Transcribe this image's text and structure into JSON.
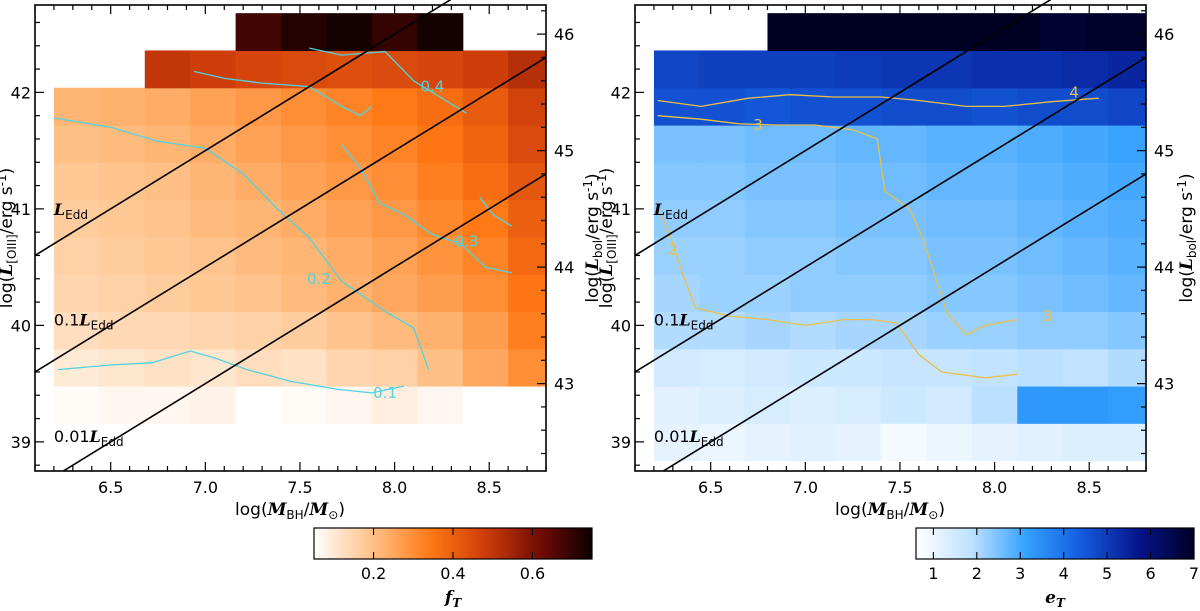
{
  "chart_data": [
    {
      "type": "heatmap",
      "xlabel": "log(M_BH/M_⊙)",
      "ylabel": "log(L_[OIII]/erg s^-1)",
      "ylabel_right": "log(L_bol/erg s^-1)",
      "xlim": [
        6.1,
        8.8
      ],
      "ylim": [
        38.75,
        42.75
      ],
      "x_ticks": [
        "6.5",
        "7.0",
        "7.5",
        "8.0",
        "8.5"
      ],
      "y_ticks": [
        "39",
        "40",
        "41",
        "42"
      ],
      "y_ticks_right": [
        "43",
        "44",
        "45",
        "46"
      ],
      "right_axis_offset": 3.5,
      "colormap": "orange",
      "colorbar": {
        "label": "f_T",
        "range": [
          0.05,
          0.75
        ],
        "ticks": [
          "0.2",
          "0.4",
          "0.6"
        ],
        "tick_values": [
          0.2,
          0.4,
          0.6
        ]
      },
      "eddington_lines": [
        {
          "label": "L_Edd",
          "label_prefix": "",
          "offset": 0,
          "label_xy": [
            6.2,
            41.0
          ]
        },
        {
          "label": "0.1L_Edd",
          "label_prefix": "0.1",
          "offset": -1,
          "label_xy": [
            6.2,
            40.05
          ]
        },
        {
          "label": "0.01L_Edd",
          "label_prefix": "0.01",
          "offset": -2,
          "label_xy": [
            6.2,
            39.05
          ]
        }
      ],
      "edd_line_slope": 1,
      "edd_line_intercept": 34.5,
      "x_bin_width": 0.24,
      "y_bin_height": 0.32,
      "rows": [
        {
          "y": 39.0,
          "x0": 6.2,
          "values": [
            0.03,
            0.03,
            0.04,
            0.04,
            0.04,
            0.03,
            0.05
          ]
        },
        {
          "y": 39.32,
          "x0": 6.2,
          "values": [
            0.06,
            0.07,
            0.07,
            0.08,
            0.05,
            0.06,
            0.07,
            0.09,
            0.07,
            0.05,
            0.04
          ]
        },
        {
          "y": 39.64,
          "x0": 6.2,
          "values": [
            0.1,
            0.11,
            0.12,
            0.11,
            0.13,
            0.12,
            0.15,
            0.16,
            0.2,
            0.25,
            0.3
          ]
        },
        {
          "y": 39.96,
          "x0": 6.2,
          "values": [
            0.13,
            0.14,
            0.14,
            0.15,
            0.16,
            0.17,
            0.19,
            0.21,
            0.23,
            0.27,
            0.33
          ]
        },
        {
          "y": 40.28,
          "x0": 6.2,
          "values": [
            0.15,
            0.16,
            0.17,
            0.18,
            0.19,
            0.21,
            0.23,
            0.25,
            0.27,
            0.3,
            0.35,
            0.3
          ]
        },
        {
          "y": 40.6,
          "x0": 6.2,
          "values": [
            0.16,
            0.17,
            0.18,
            0.19,
            0.21,
            0.22,
            0.24,
            0.26,
            0.29,
            0.32,
            0.38,
            0.4
          ]
        },
        {
          "y": 40.92,
          "x0": 6.2,
          "values": [
            0.17,
            0.18,
            0.19,
            0.21,
            0.22,
            0.24,
            0.26,
            0.28,
            0.31,
            0.34,
            0.4,
            0.42
          ]
        },
        {
          "y": 41.24,
          "x0": 6.2,
          "values": [
            0.18,
            0.19,
            0.2,
            0.22,
            0.24,
            0.26,
            0.28,
            0.3,
            0.33,
            0.37,
            0.42,
            0.47
          ]
        },
        {
          "y": 41.56,
          "x0": 6.2,
          "values": [
            0.2,
            0.21,
            0.22,
            0.24,
            0.26,
            0.28,
            0.3,
            0.32,
            0.35,
            0.39,
            0.45,
            0.52
          ]
        },
        {
          "y": 41.88,
          "x0": 6.2,
          "values": [
            0.22,
            0.23,
            0.24,
            0.26,
            0.28,
            0.3,
            0.32,
            0.34,
            0.37,
            0.41,
            0.47,
            0.6
          ]
        },
        {
          "y": 42.2,
          "x0": 6.68,
          "values": [
            0.5,
            0.48,
            0.46,
            0.45,
            0.44,
            0.45,
            0.46,
            0.48,
            0.52,
            0.55
          ]
        },
        {
          "y": 42.52,
          "x0": 7.16,
          "values": [
            0.68,
            0.72,
            0.74,
            0.7,
            0.74
          ]
        }
      ],
      "contours": [
        {
          "label": "0.1",
          "label_xy": [
            7.95,
            39.42
          ],
          "points": [
            [
              6.22,
              39.62
            ],
            [
              6.5,
              39.66
            ],
            [
              6.72,
              39.68
            ],
            [
              6.92,
              39.78
            ],
            [
              7.05,
              39.72
            ],
            [
              7.22,
              39.62
            ],
            [
              7.45,
              39.52
            ],
            [
              7.7,
              39.45
            ],
            [
              7.88,
              39.42
            ],
            [
              8.05,
              39.48
            ]
          ]
        },
        {
          "label": "0.2",
          "label_xy": [
            7.6,
            40.4
          ],
          "points": [
            [
              6.2,
              41.78
            ],
            [
              6.5,
              41.7
            ],
            [
              6.75,
              41.58
            ],
            [
              7.0,
              41.52
            ],
            [
              7.2,
              41.3
            ],
            [
              7.38,
              41.0
            ],
            [
              7.55,
              40.75
            ],
            [
              7.72,
              40.38
            ],
            [
              7.95,
              40.12
            ],
            [
              8.1,
              39.98
            ],
            [
              8.18,
              39.62
            ]
          ]
        },
        {
          "label": "0.3",
          "label_xy": [
            8.38,
            40.72
          ],
          "points": [
            [
              7.72,
              41.55
            ],
            [
              7.82,
              41.35
            ],
            [
              7.92,
              41.05
            ],
            [
              8.05,
              40.95
            ],
            [
              8.2,
              40.78
            ],
            [
              8.35,
              40.7
            ],
            [
              8.48,
              40.5
            ],
            [
              8.62,
              40.45
            ]
          ]
        },
        {
          "label": "0.4",
          "label_xy": [
            8.2,
            42.05
          ],
          "points": [
            [
              6.94,
              42.18
            ],
            [
              7.1,
              42.12
            ],
            [
              7.3,
              42.08
            ],
            [
              7.55,
              42.05
            ],
            [
              7.72,
              41.88
            ],
            [
              7.82,
              41.8
            ],
            [
              7.88,
              41.88
            ]
          ]
        },
        {
          "label": "",
          "label_xy": [
            0,
            0
          ],
          "points": [
            [
              7.55,
              42.38
            ],
            [
              7.72,
              42.32
            ],
            [
              7.95,
              42.35
            ],
            [
              8.1,
              42.1
            ],
            [
              8.25,
              41.95
            ],
            [
              8.38,
              41.82
            ]
          ]
        },
        {
          "label": "",
          "label_xy": [
            0,
            0
          ],
          "points": [
            [
              8.45,
              41.1
            ],
            [
              8.52,
              40.95
            ],
            [
              8.62,
              40.85
            ]
          ]
        }
      ]
    },
    {
      "type": "heatmap",
      "xlabel": "log(M_BH/M_⊙)",
      "ylabel": "log(L_[OIII]/erg s^-1)",
      "ylabel_right": "log(L_bol/erg s^-1)",
      "xlim": [
        6.1,
        8.8
      ],
      "ylim": [
        38.75,
        42.75
      ],
      "x_ticks": [
        "6.5",
        "7.0",
        "7.5",
        "8.0",
        "8.5"
      ],
      "y_ticks": [
        "39",
        "40",
        "41",
        "42"
      ],
      "y_ticks_right": [
        "43",
        "44",
        "45",
        "46"
      ],
      "right_axis_offset": 3.5,
      "colormap": "blue",
      "colorbar": {
        "label": "e_T",
        "range": [
          0.6,
          7.0
        ],
        "ticks": [
          "1",
          "2",
          "3",
          "4",
          "5",
          "6",
          "7"
        ],
        "tick_values": [
          1,
          2,
          3,
          4,
          5,
          6,
          7
        ]
      },
      "eddington_lines": [
        {
          "label": "L_Edd",
          "label_prefix": "",
          "offset": 0,
          "label_xy": [
            6.2,
            41.0
          ]
        },
        {
          "label": "0.1L_Edd",
          "label_prefix": "0.1",
          "offset": -1,
          "label_xy": [
            6.2,
            40.05
          ]
        },
        {
          "label": "0.01L_Edd",
          "label_prefix": "0.01",
          "offset": -2,
          "label_xy": [
            6.2,
            39.05
          ]
        }
      ],
      "edd_line_slope": 1,
      "edd_line_intercept": 34.5,
      "x_bin_width": 0.24,
      "y_bin_height": 0.32,
      "rows": [
        {
          "y": 39.0,
          "x0": 6.2,
          "values": [
            1.1,
            1.0,
            1.1,
            1.2,
            1.1,
            0.8,
            1.0,
            1.1,
            1.2,
            1.3,
            1.3,
            1.4,
            1.5
          ]
        },
        {
          "y": 39.32,
          "x0": 6.2,
          "values": [
            1.2,
            1.3,
            1.4,
            1.3,
            1.4,
            1.6,
            1.5,
            1.9,
            3.3,
            3.3,
            3.2,
            3.1,
            3.0,
            3.0,
            3.0,
            3.1,
            3.3
          ]
        },
        {
          "y": 39.64,
          "x0": 6.2,
          "values": [
            1.5,
            1.4,
            1.5,
            1.6,
            1.6,
            1.7,
            1.7,
            1.8,
            1.9,
            1.8,
            2.0,
            2.2,
            2.3,
            2.3,
            2.4,
            2.5
          ]
        },
        {
          "y": 39.96,
          "x0": 6.2,
          "values": [
            2.0,
            2.0,
            2.1,
            2.0,
            2.1,
            2.1,
            2.2,
            2.2,
            2.3,
            2.3,
            2.4,
            2.5,
            2.6,
            2.6,
            2.8,
            2.9,
            3.0,
            2.8
          ]
        },
        {
          "y": 40.28,
          "x0": 6.2,
          "values": [
            2.1,
            2.2,
            2.2,
            2.3,
            2.3,
            2.3,
            2.4,
            2.4,
            2.5,
            2.6,
            2.7,
            2.8,
            2.8,
            2.9,
            3.1,
            3.2,
            3.4,
            3.0
          ]
        },
        {
          "y": 40.6,
          "x0": 6.2,
          "values": [
            2.2,
            2.2,
            2.3,
            2.3,
            2.4,
            2.4,
            2.5,
            2.5,
            2.6,
            2.7,
            2.8,
            2.9,
            2.9,
            3.1,
            3.3,
            3.4,
            3.6,
            3.3
          ]
        },
        {
          "y": 40.92,
          "x0": 6.2,
          "values": [
            2.3,
            2.3,
            2.4,
            2.4,
            2.5,
            2.5,
            2.6,
            2.6,
            2.7,
            2.8,
            2.9,
            3.0,
            3.1,
            3.3,
            3.5,
            3.6,
            3.8,
            3.6
          ]
        },
        {
          "y": 41.24,
          "x0": 6.2,
          "values": [
            2.4,
            2.4,
            2.5,
            2.5,
            2.6,
            2.6,
            2.7,
            2.7,
            2.8,
            2.9,
            3.0,
            3.1,
            3.3,
            3.4,
            3.6,
            3.8,
            4.0,
            3.9
          ]
        },
        {
          "y": 41.56,
          "x0": 6.2,
          "values": [
            2.5,
            2.5,
            2.6,
            2.6,
            2.7,
            2.7,
            2.8,
            2.8,
            2.9,
            3.0,
            3.1,
            3.3,
            3.4,
            3.6,
            3.8,
            4.0,
            4.1,
            4.1
          ]
        },
        {
          "y": 41.88,
          "x0": 6.2,
          "values": [
            4.6,
            4.6,
            4.5,
            4.6,
            4.6,
            4.7,
            4.7,
            4.6,
            4.7,
            4.7,
            4.8,
            4.7,
            4.8,
            4.8,
            4.9,
            4.9,
            4.9,
            5.0
          ]
        },
        {
          "y": 42.2,
          "x0": 6.2,
          "values": [
            4.8,
            4.9,
            4.9,
            4.9,
            5.0,
            5.1,
            5.1,
            5.2,
            5.2,
            5.3,
            5.4,
            5.4,
            5.5,
            5.6,
            5.8,
            6.0,
            6.3,
            6.6
          ]
        },
        {
          "y": 42.52,
          "x0": 6.8,
          "values": [
            7.0,
            7.0,
            7.0,
            7.0,
            7.0,
            7.0,
            6.8,
            6.9,
            6.9,
            7.0,
            7.0,
            7.0
          ]
        }
      ],
      "contours": [
        {
          "label": "4",
          "label_xy": [
            8.42,
            42.0
          ],
          "points": [
            [
              6.22,
              41.93
            ],
            [
              6.45,
              41.88
            ],
            [
              6.7,
              41.95
            ],
            [
              6.92,
              41.98
            ],
            [
              7.15,
              41.96
            ],
            [
              7.4,
              41.96
            ],
            [
              7.6,
              41.93
            ],
            [
              7.85,
              41.88
            ],
            [
              8.05,
              41.88
            ],
            [
              8.3,
              41.92
            ],
            [
              8.55,
              41.95
            ]
          ]
        },
        {
          "label": "3",
          "label_xy": [
            6.75,
            41.72
          ],
          "points": [
            [
              6.22,
              41.8
            ],
            [
              6.45,
              41.77
            ],
            [
              6.65,
              41.73
            ],
            [
              6.85,
              41.72
            ],
            [
              7.05,
              41.72
            ],
            [
              7.25,
              41.68
            ],
            [
              7.38,
              41.6
            ],
            [
              7.42,
              41.15
            ],
            [
              7.55,
              41.0
            ],
            [
              7.62,
              40.75
            ],
            [
              7.75,
              40.1
            ],
            [
              7.85,
              39.92
            ],
            [
              7.95,
              40.0
            ],
            [
              8.12,
              40.05
            ]
          ]
        },
        {
          "label": "3",
          "label_xy": [
            8.28,
            40.08
          ],
          "points": []
        },
        {
          "label": "2",
          "label_xy": [
            6.3,
            40.65
          ],
          "points": [
            [
              6.22,
              41.0
            ],
            [
              6.28,
              40.8
            ],
            [
              6.35,
              40.45
            ],
            [
              6.42,
              40.15
            ],
            [
              6.6,
              40.08
            ],
            [
              6.8,
              40.05
            ],
            [
              7.0,
              40.0
            ],
            [
              7.2,
              40.05
            ],
            [
              7.35,
              40.05
            ],
            [
              7.48,
              40.02
            ],
            [
              7.6,
              39.75
            ],
            [
              7.72,
              39.6
            ],
            [
              7.95,
              39.55
            ],
            [
              8.12,
              39.58
            ]
          ]
        }
      ]
    }
  ]
}
